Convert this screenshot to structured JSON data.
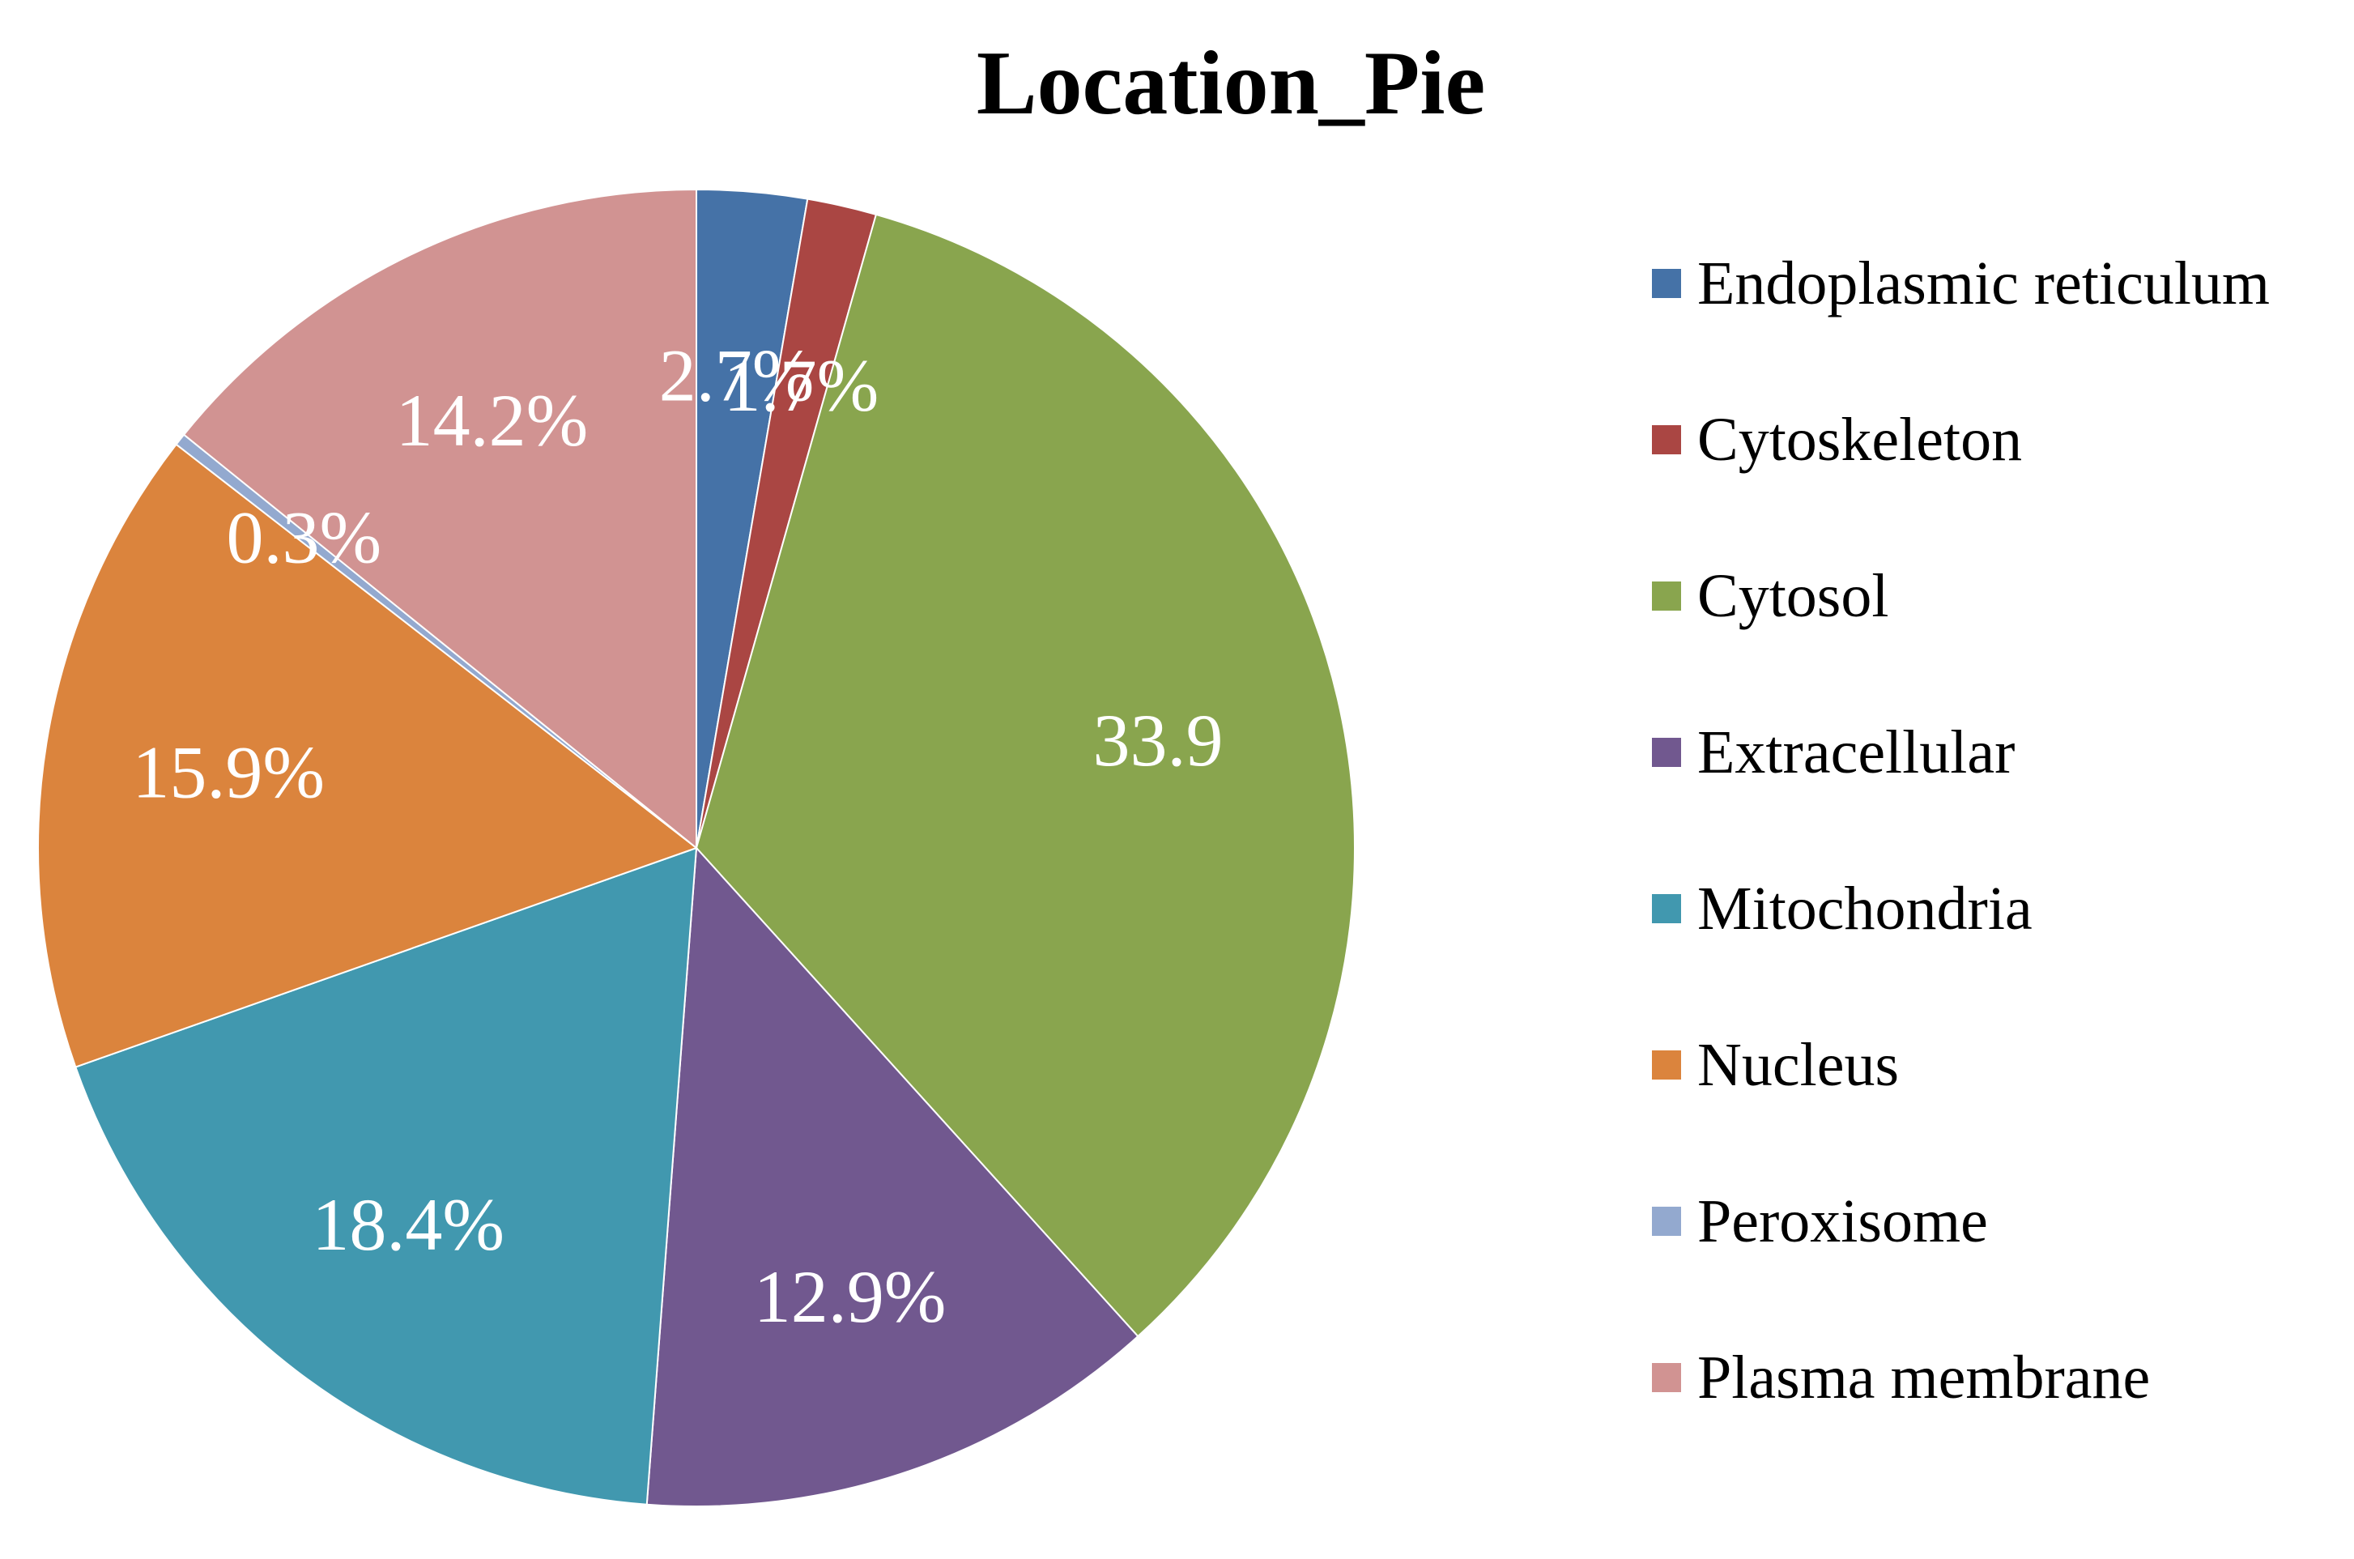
{
  "chart_data": {
    "type": "pie",
    "title": "Location_Pie",
    "legend_position": "right",
    "start": "top",
    "direction": "clockwise",
    "slices": [
      {
        "name": "Endoplasmic reticulum",
        "value": 2.7,
        "label": "2.7%",
        "color": "#4572A7"
      },
      {
        "name": "Cytoskeleton",
        "value": 1.7,
        "label": "1.7%",
        "color": "#AA4643"
      },
      {
        "name": "Cytosol",
        "value": 33.9,
        "label": "33.9",
        "color": "#89A54E"
      },
      {
        "name": "Extracellular",
        "value": 12.9,
        "label": "12.9%",
        "color": "#71588F"
      },
      {
        "name": "Mitochondria",
        "value": 18.4,
        "label": "18.4%",
        "color": "#4198AF"
      },
      {
        "name": "Nucleus",
        "value": 15.9,
        "label": "15.9%",
        "color": "#DB843D"
      },
      {
        "name": "Peroxisome",
        "value": 0.3,
        "label": "0.3%",
        "color": "#93A9CF"
      },
      {
        "name": "Plasma membrane",
        "value": 14.2,
        "label": "14.2%",
        "color": "#D19392"
      }
    ]
  }
}
